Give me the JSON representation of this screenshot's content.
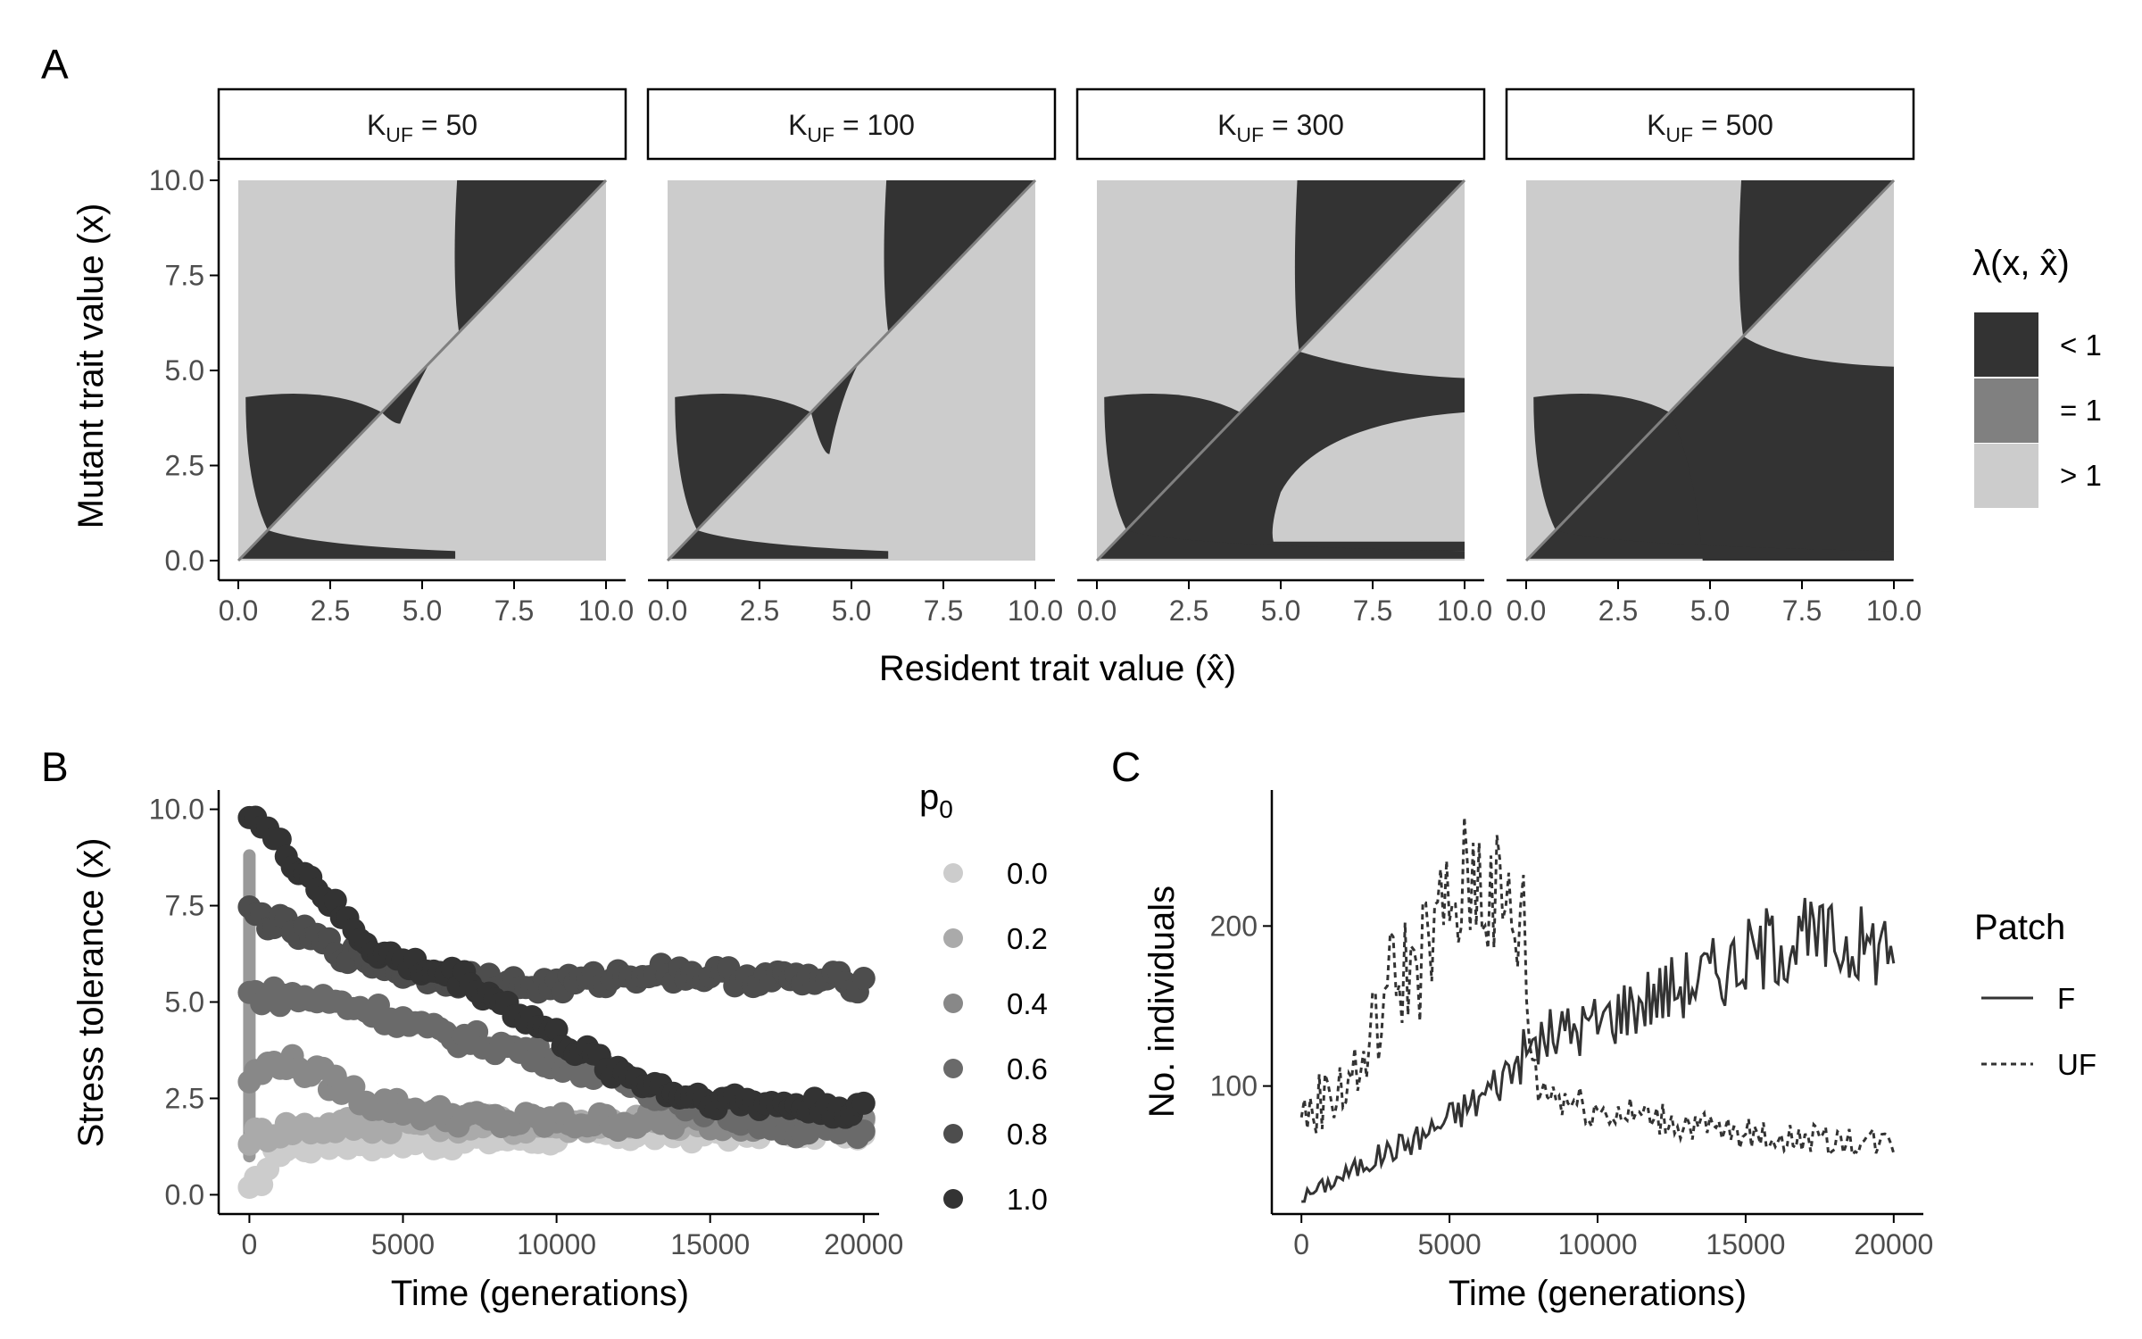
{
  "panel_labels": {
    "a": "A",
    "b": "B",
    "c": "C"
  },
  "colors": {
    "dark": "#333333",
    "mid": "#808080",
    "light": "#cccccc",
    "axis": "#000000",
    "tick_text": "#4d4d4d"
  },
  "chart_data": [
    {
      "id": "A",
      "type": "heatmap",
      "facets": [
        {
          "label_main": "K",
          "label_sub": "UF",
          "label_rest": " = 50"
        },
        {
          "label_main": "K",
          "label_sub": "UF",
          "label_rest": " = 100"
        },
        {
          "label_main": "K",
          "label_sub": "UF",
          "label_rest": " = 300"
        },
        {
          "label_main": "K",
          "label_sub": "UF",
          "label_rest": " = 500"
        }
      ],
      "xlabel": "Resident trait value (x̂)",
      "ylabel": "Mutant trait value (x)",
      "xlim": [
        0,
        10
      ],
      "ylim": [
        0,
        10
      ],
      "xticks": [
        "0.0",
        "2.5",
        "5.0",
        "7.5",
        "10.0"
      ],
      "yticks": [
        "0.0",
        "2.5",
        "5.0",
        "7.5",
        "10.0"
      ],
      "legend": {
        "title": "λ(x, x̂)",
        "entries": [
          {
            "label": "< 1",
            "color": "#333333"
          },
          {
            "label": "= 1",
            "color": "#808080"
          },
          {
            "label": "> 1",
            "color": "#cccccc"
          }
        ]
      },
      "singular_points": [
        {
          "facet": "K_UF = 50",
          "points": [
            0.8,
            4.2
          ]
        },
        {
          "facet": "K_UF = 100",
          "points": [
            0.8,
            4.0
          ]
        },
        {
          "facet": "K_UF = 300",
          "points": [
            0.8,
            3.9,
            5.5
          ]
        },
        {
          "facet": "K_UF = 500",
          "points": [
            0.8,
            3.9,
            5.9
          ]
        }
      ]
    },
    {
      "id": "B",
      "type": "scatter",
      "xlabel": "Time (generations)",
      "ylabel": "Stress tolerance (x)",
      "xlim": [
        -1000,
        20500
      ],
      "ylim": [
        -0.5,
        10.5
      ],
      "xticks": [
        "0",
        "5000",
        "10000",
        "15000",
        "20000"
      ],
      "yticks": [
        "0.0",
        "2.5",
        "5.0",
        "7.5",
        "10.0"
      ],
      "legend": {
        "title_main": "p",
        "title_sub": "0"
      },
      "series": [
        {
          "name": "0.0",
          "color": "#cccccc",
          "values": [
            [
              0,
              0.0
            ],
            [
              1000,
              1.2
            ],
            [
              3000,
              1.4
            ],
            [
              6000,
              1.4
            ],
            [
              9000,
              1.5
            ],
            [
              12000,
              1.6
            ],
            [
              15000,
              1.6
            ],
            [
              17000,
              1.7
            ],
            [
              20000,
              1.7
            ]
          ]
        },
        {
          "name": "0.2",
          "color": "#aaaaaa",
          "values": [
            [
              0,
              1.5
            ],
            [
              1000,
              1.7
            ],
            [
              3000,
              1.8
            ],
            [
              6000,
              1.9
            ],
            [
              9000,
              1.8
            ],
            [
              12000,
              1.9
            ],
            [
              15000,
              1.9
            ],
            [
              17000,
              2.0
            ],
            [
              20000,
              2.0
            ]
          ]
        },
        {
          "name": "0.4",
          "color": "#888888",
          "values": [
            [
              0,
              3.0
            ],
            [
              1000,
              3.5
            ],
            [
              2000,
              3.2
            ],
            [
              4000,
              2.4
            ],
            [
              6000,
              2.1
            ],
            [
              8000,
              1.9
            ],
            [
              10000,
              1.9
            ],
            [
              13000,
              1.9
            ],
            [
              16000,
              1.9
            ],
            [
              18000,
              2.0
            ],
            [
              20000,
              2.0
            ]
          ]
        },
        {
          "name": "0.6",
          "color": "#6a6a6a",
          "values": [
            [
              0,
              5.2
            ],
            [
              2000,
              5.1
            ],
            [
              4000,
              4.8
            ],
            [
              6000,
              4.2
            ],
            [
              8000,
              3.9
            ],
            [
              10000,
              3.5
            ],
            [
              12000,
              3.0
            ],
            [
              14000,
              2.5
            ],
            [
              16000,
              2.0
            ],
            [
              18000,
              1.7
            ],
            [
              20000,
              1.6
            ]
          ]
        },
        {
          "name": "0.8",
          "color": "#4d4d4d",
          "values": [
            [
              0,
              7.3
            ],
            [
              1000,
              7.0
            ],
            [
              3000,
              6.3
            ],
            [
              5000,
              5.8
            ],
            [
              7000,
              5.6
            ],
            [
              9000,
              5.4
            ],
            [
              11000,
              5.5
            ],
            [
              13000,
              5.8
            ],
            [
              15000,
              5.7
            ],
            [
              17000,
              5.6
            ],
            [
              20000,
              5.5
            ]
          ]
        },
        {
          "name": "1.0",
          "color": "#333333",
          "values": [
            [
              0,
              10.0
            ],
            [
              1000,
              9.0
            ],
            [
              2000,
              8.2
            ],
            [
              3000,
              7.2
            ],
            [
              4000,
              6.4
            ],
            [
              5000,
              6.0
            ],
            [
              6000,
              5.8
            ],
            [
              7000,
              5.6
            ],
            [
              8000,
              5.1
            ],
            [
              9000,
              4.6
            ],
            [
              10000,
              4.1
            ],
            [
              11000,
              3.6
            ],
            [
              12000,
              3.2
            ],
            [
              13000,
              2.9
            ],
            [
              14000,
              2.6
            ],
            [
              16000,
              2.4
            ],
            [
              18000,
              2.3
            ],
            [
              20000,
              2.2
            ]
          ]
        }
      ],
      "vertical_spread_at_zero": [
        1.0,
        8.8
      ]
    },
    {
      "id": "C",
      "type": "line",
      "xlabel": "Time (generations)",
      "ylabel": "No. individuals",
      "xlim": [
        -1000,
        21000
      ],
      "ylim": [
        20,
        285
      ],
      "xticks": [
        "0",
        "5000",
        "10000",
        "15000",
        "20000"
      ],
      "yticks": [
        "100",
        "200"
      ],
      "legend": {
        "title": "Patch",
        "entries": [
          {
            "label": "F",
            "dash": "solid"
          },
          {
            "label": "UF",
            "dash": "dashed"
          }
        ]
      },
      "series": [
        {
          "name": "F",
          "dash": "solid",
          "values": [
            [
              0,
              30
            ],
            [
              1000,
              40
            ],
            [
              2000,
              50
            ],
            [
              3000,
              60
            ],
            [
              4000,
              68
            ],
            [
              5000,
              80
            ],
            [
              6000,
              92
            ],
            [
              7000,
              110
            ],
            [
              8000,
              128
            ],
            [
              9000,
              135
            ],
            [
              10000,
              140
            ],
            [
              11000,
              150
            ],
            [
              12000,
              158
            ],
            [
              13000,
              165
            ],
            [
              14000,
              172
            ],
            [
              15000,
              180
            ],
            [
              16000,
              190
            ],
            [
              17000,
              192
            ],
            [
              18000,
              190
            ],
            [
              19000,
              188
            ],
            [
              20000,
              190
            ]
          ]
        },
        {
          "name": "UF",
          "dash": "dashed",
          "values": [
            [
              0,
              80
            ],
            [
              1000,
              95
            ],
            [
              2000,
              110
            ],
            [
              3000,
              165
            ],
            [
              4000,
              180
            ],
            [
              5000,
              210
            ],
            [
              6000,
              235
            ],
            [
              7000,
              205
            ],
            [
              7500,
              200
            ],
            [
              7700,
              130
            ],
            [
              8000,
              100
            ],
            [
              9000,
              92
            ],
            [
              10000,
              85
            ],
            [
              12000,
              80
            ],
            [
              14000,
              72
            ],
            [
              16000,
              68
            ],
            [
              18000,
              66
            ],
            [
              20000,
              65
            ]
          ]
        }
      ]
    }
  ]
}
